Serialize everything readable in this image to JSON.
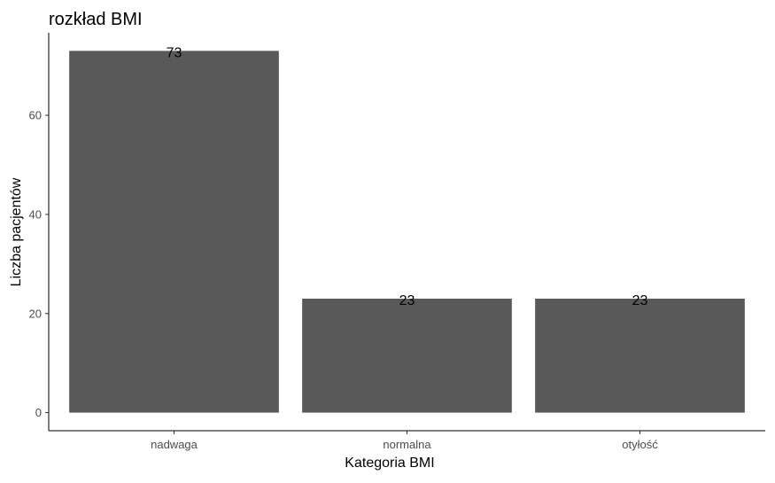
{
  "chart_data": {
    "type": "bar",
    "title": "rozkład BMI",
    "xlabel": "Kategoria BMI",
    "ylabel": "Liczba pacjentów",
    "categories": [
      "nadwaga",
      "normalna",
      "otyłość"
    ],
    "values": [
      73,
      23,
      23
    ],
    "data_labels": [
      "73",
      "23",
      "23"
    ],
    "y_ticks": [
      0,
      20,
      40,
      60
    ],
    "ylim": [
      -3.65,
      76.65
    ],
    "grid": false,
    "legend": "none",
    "bar_color": "#595959"
  }
}
